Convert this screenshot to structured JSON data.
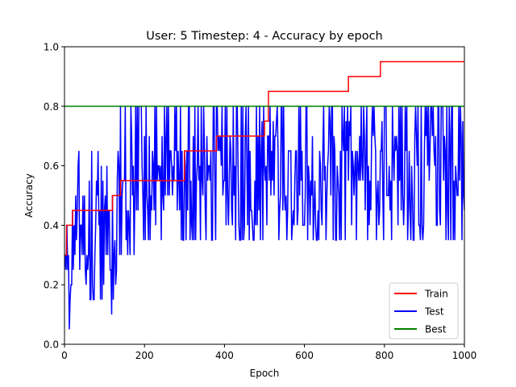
{
  "chart_data": {
    "type": "line",
    "title": "User: 5 Timestep: 4 - Accuracy by epoch",
    "xlabel": "Epoch",
    "ylabel": "Accuracy",
    "xlim": [
      0,
      1000
    ],
    "ylim": [
      0.0,
      1.0
    ],
    "xticks": [
      0,
      200,
      400,
      600,
      800,
      1000
    ],
    "xtick_labels": [
      "0",
      "200",
      "400",
      "600",
      "800",
      "1000"
    ],
    "yticks": [
      0.0,
      0.2,
      0.4,
      0.6,
      0.8,
      1.0
    ],
    "ytick_labels": [
      "0.0",
      "0.2",
      "0.4",
      "0.6",
      "0.8",
      "1.0"
    ],
    "grid": false,
    "legend_position": "lower-right",
    "series": [
      {
        "name": "Train",
        "color": "#ff0000",
        "style": "step",
        "x": [
          0,
          5,
          20,
          120,
          140,
          300,
          380,
          495,
          500,
          510,
          705,
          710,
          785,
          790,
          1000
        ],
        "y": [
          0.3,
          0.4,
          0.45,
          0.5,
          0.55,
          0.65,
          0.7,
          0.7,
          0.75,
          0.85,
          0.85,
          0.9,
          0.9,
          0.95,
          0.95
        ]
      },
      {
        "name": "Test",
        "color": "#0000ff",
        "style": "noisy",
        "x": [
          0,
          10,
          20,
          40,
          60,
          80,
          100,
          120,
          130,
          140,
          160,
          180,
          200,
          240,
          300,
          400,
          500,
          600,
          700,
          800,
          900,
          1000
        ],
        "y": [
          0.25,
          0.2,
          0.35,
          0.4,
          0.35,
          0.4,
          0.4,
          0.4,
          0.4,
          0.45,
          0.5,
          0.5,
          0.55,
          0.55,
          0.55,
          0.55,
          0.56,
          0.56,
          0.56,
          0.56,
          0.56,
          0.56
        ],
        "lower": [
          0.2,
          0.0,
          0.25,
          0.25,
          0.15,
          0.15,
          0.15,
          0.1,
          0.25,
          0.3,
          0.3,
          0.3,
          0.35,
          0.35,
          0.35,
          0.35,
          0.35,
          0.35,
          0.35,
          0.35,
          0.35,
          0.35
        ],
        "upper": [
          0.35,
          0.45,
          0.55,
          0.65,
          0.65,
          0.65,
          0.65,
          0.55,
          0.8,
          0.8,
          0.8,
          0.8,
          0.8,
          0.8,
          0.8,
          0.8,
          0.8,
          0.8,
          0.8,
          0.8,
          0.8,
          0.8
        ]
      },
      {
        "name": "Best",
        "color": "#008000",
        "style": "line",
        "x": [
          0,
          1000
        ],
        "y": [
          0.8,
          0.8
        ]
      }
    ]
  }
}
